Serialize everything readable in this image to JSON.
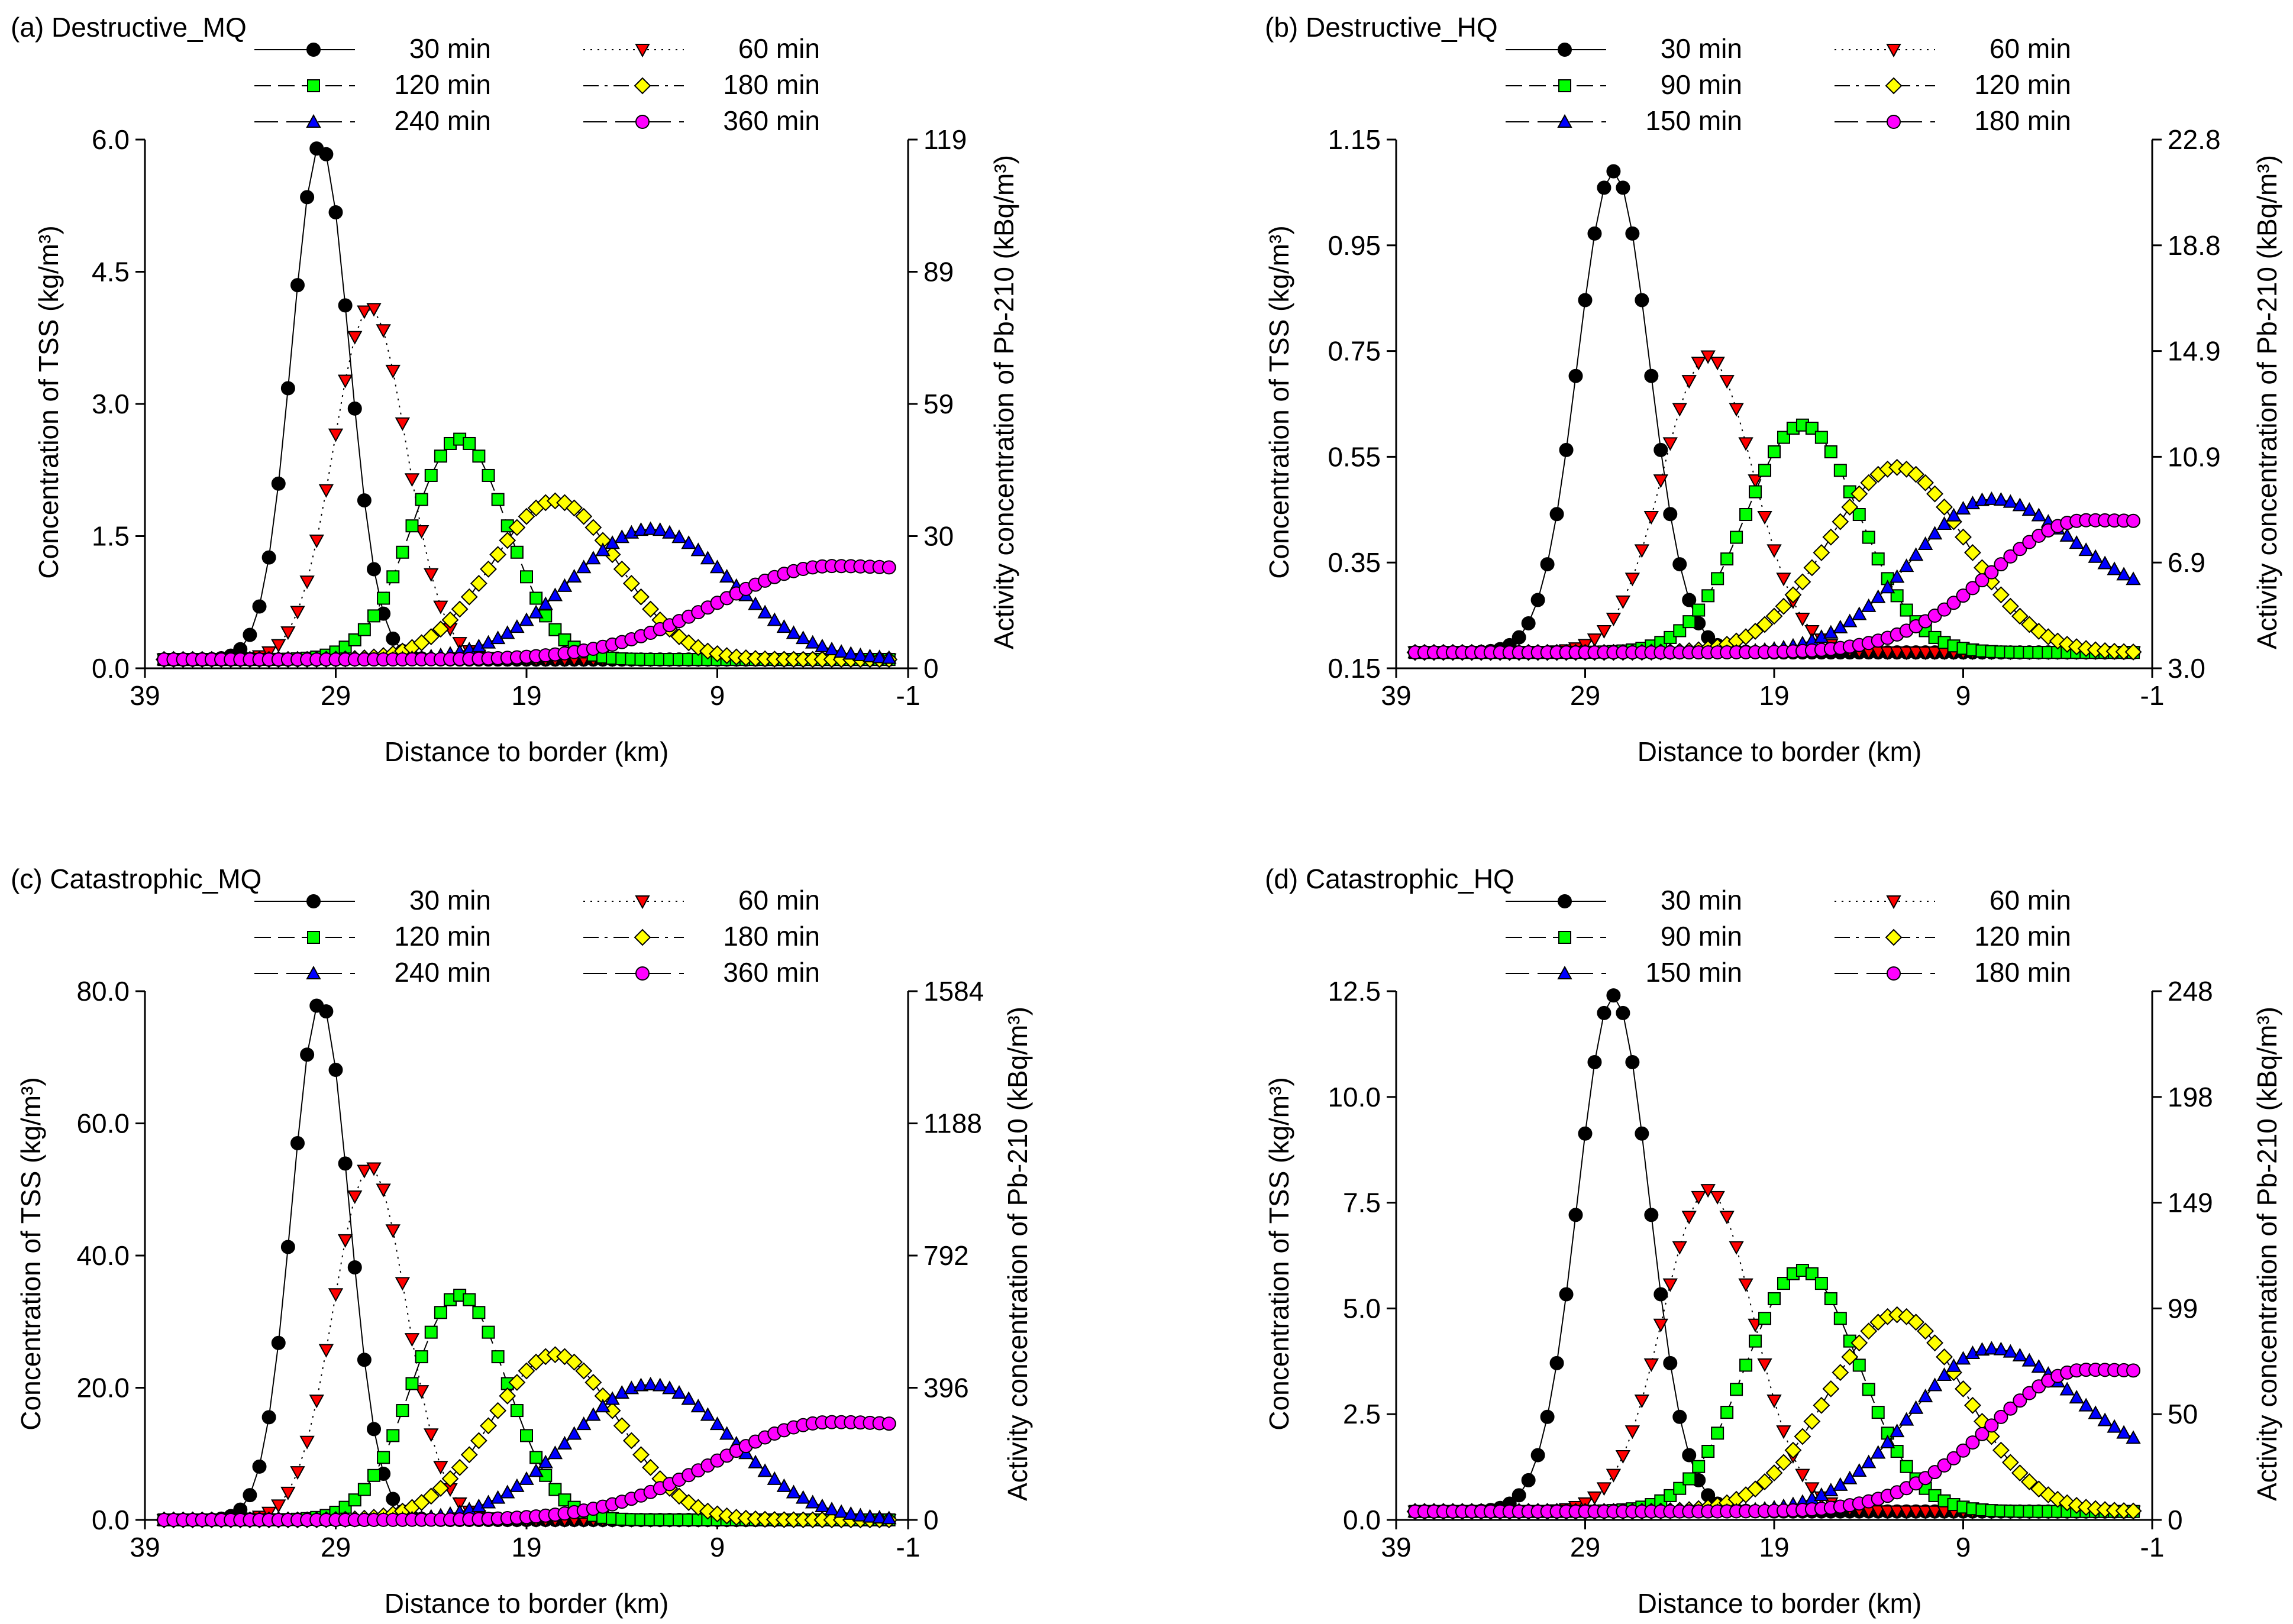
{
  "chart_data": [
    {
      "type": "line",
      "id": "a",
      "title": "(a) Destructive_MQ",
      "xlabel": "Distance to border (km)",
      "ylabel": "Concentration of TSS (kg/m³)",
      "y2label": "Activity concentration of Pb-210 (kBq/m³)",
      "xlim": [
        39,
        -1
      ],
      "xticks": [
        39,
        29,
        19,
        9,
        -1
      ],
      "ylim": [
        0,
        6.0
      ],
      "yticks": [
        "0.0",
        "1.5",
        "3.0",
        "4.5",
        "6.0"
      ],
      "y2ticks": [
        "0",
        "30",
        "59",
        "89",
        "119"
      ],
      "baseline": 0.1,
      "series": [
        {
          "name": "30 min",
          "label": "30 min",
          "color": "#000000",
          "marker": "circle",
          "dash": "solid",
          "peak_x": 29.8,
          "peak_y": 5.95,
          "sigma": 1.5,
          "tail": 0.1
        },
        {
          "name": "60 min",
          "label": "60 min",
          "color": "#ff0000",
          "marker": "triangle",
          "dash": "dotted",
          "peak_x": 27.2,
          "peak_y": 4.1,
          "sigma": 1.9,
          "tail": 0.1
        },
        {
          "name": "120 min",
          "label": "120 min",
          "color": "#00ff00",
          "marker": "square",
          "dash": "dashed",
          "peak_x": 22.5,
          "peak_y": 2.6,
          "sigma": 2.5,
          "tail": 0.1
        },
        {
          "name": "180 min",
          "label": "180 min",
          "color": "#ffff00",
          "marker": "diamond",
          "dash": "dashdot",
          "peak_x": 17.5,
          "peak_y": 1.9,
          "sigma": 3.3,
          "tail": 0.1
        },
        {
          "name": "240 min",
          "label": "240 min",
          "color": "#0000ff",
          "marker": "triangle",
          "dash": "longdash",
          "peak_x": 12.5,
          "peak_y": 1.58,
          "sigma": 4.2,
          "tail": 0.1
        },
        {
          "name": "360 min",
          "label": "360 min",
          "color": "#ff00ff",
          "marker": "circle",
          "dash": "longdash",
          "peak_x": 3.0,
          "peak_y": 1.16,
          "sigma": 6.0,
          "tail": 1.03
        }
      ]
    },
    {
      "type": "line",
      "id": "b",
      "title": "(b) Destructive_HQ",
      "xlabel": "Distance to border (km)",
      "ylabel": "Concentration of TSS (kg/m³)",
      "y2label": "Activity concentration of Pb-210 (kBq/m³)",
      "xlim": [
        39,
        -1
      ],
      "xticks": [
        39,
        29,
        19,
        9,
        -1
      ],
      "ylim": [
        0.15,
        1.15
      ],
      "yticks": [
        "0.15",
        "0.35",
        "0.55",
        "0.75",
        "0.95",
        "1.15"
      ],
      "y2ticks": [
        "3.0",
        "6.9",
        "10.9",
        "14.9",
        "18.8",
        "22.8"
      ],
      "baseline": 0.18,
      "series": [
        {
          "name": "30 min",
          "label": "30 min",
          "color": "#000000",
          "marker": "circle",
          "dash": "solid",
          "peak_x": 27.5,
          "peak_y": 1.09,
          "sigma": 1.9,
          "tail": 0.18
        },
        {
          "name": "60 min",
          "label": "60 min",
          "color": "#ff0000",
          "marker": "triangle",
          "dash": "dotted",
          "peak_x": 22.5,
          "peak_y": 0.74,
          "sigma": 2.4,
          "tail": 0.18
        },
        {
          "name": "90 min",
          "label": "90 min",
          "color": "#00ff00",
          "marker": "square",
          "dash": "dashed",
          "peak_x": 17.5,
          "peak_y": 0.61,
          "sigma": 3.0,
          "tail": 0.18
        },
        {
          "name": "120 min",
          "label": "120 min",
          "color": "#ffff00",
          "marker": "diamond",
          "dash": "dashdot",
          "peak_x": 12.5,
          "peak_y": 0.53,
          "sigma": 3.6,
          "tail": 0.18
        },
        {
          "name": "150 min",
          "label": "150 min",
          "color": "#0000ff",
          "marker": "triangle",
          "dash": "longdash",
          "peak_x": 7.5,
          "peak_y": 0.47,
          "sigma": 4.2,
          "tail": 0.28
        },
        {
          "name": "180 min",
          "label": "180 min",
          "color": "#ff00ff",
          "marker": "circle",
          "dash": "longdash",
          "peak_x": 2.5,
          "peak_y": 0.43,
          "sigma": 5.0,
          "tail": 0.42
        }
      ]
    },
    {
      "type": "line",
      "id": "c",
      "title": "(c) Catastrophic_MQ",
      "xlabel": "Distance to border (km)",
      "ylabel": "Concentration of TSS (kg/m³)",
      "y2label": "Activity concentration of Pb-210 (kBq/m³)",
      "xlim": [
        39,
        -1
      ],
      "xticks": [
        39,
        29,
        19,
        9,
        -1
      ],
      "ylim": [
        0,
        80.0
      ],
      "yticks": [
        "0.0",
        "20.0",
        "40.0",
        "60.0",
        "80.0"
      ],
      "y2ticks": [
        "0",
        "396",
        "792",
        "1188",
        "1584"
      ],
      "baseline": 0.0,
      "series": [
        {
          "name": "30 min",
          "label": "30 min",
          "color": "#000000",
          "marker": "circle",
          "dash": "solid",
          "peak_x": 29.8,
          "peak_y": 78.5,
          "sigma": 1.5,
          "tail": 0.0
        },
        {
          "name": "60 min",
          "label": "60 min",
          "color": "#ff0000",
          "marker": "triangle",
          "dash": "dotted",
          "peak_x": 27.2,
          "peak_y": 53.5,
          "sigma": 1.9,
          "tail": 0.0
        },
        {
          "name": "120 min",
          "label": "120 min",
          "color": "#00ff00",
          "marker": "square",
          "dash": "dashed",
          "peak_x": 22.5,
          "peak_y": 34.0,
          "sigma": 2.5,
          "tail": 0.0
        },
        {
          "name": "180 min",
          "label": "180 min",
          "color": "#ffff00",
          "marker": "diamond",
          "dash": "dashdot",
          "peak_x": 17.5,
          "peak_y": 25.0,
          "sigma": 3.3,
          "tail": 0.0
        },
        {
          "name": "240 min",
          "label": "240 min",
          "color": "#0000ff",
          "marker": "triangle",
          "dash": "longdash",
          "peak_x": 12.5,
          "peak_y": 20.5,
          "sigma": 4.2,
          "tail": 0.0
        },
        {
          "name": "360 min",
          "label": "360 min",
          "color": "#ff00ff",
          "marker": "circle",
          "dash": "longdash",
          "peak_x": 3.0,
          "peak_y": 14.8,
          "sigma": 6.0,
          "tail": 12.8
        }
      ]
    },
    {
      "type": "line",
      "id": "d",
      "title": "(d) Catastrophic_HQ",
      "xlabel": "Distance to border (km)",
      "ylabel": "Concentration of TSS (kg/m³)",
      "y2label": "Activity concentration of Pb-210 (kBq/m³)",
      "xlim": [
        39,
        -1
      ],
      "xticks": [
        39,
        29,
        19,
        9,
        -1
      ],
      "ylim": [
        0,
        12.5
      ],
      "yticks": [
        "0.0",
        "2.5",
        "5.0",
        "7.5",
        "10.0",
        "12.5"
      ],
      "y2ticks": [
        "0",
        "50",
        "99",
        "149",
        "198",
        "248"
      ],
      "baseline": 0.2,
      "series": [
        {
          "name": "30 min",
          "label": "30 min",
          "color": "#000000",
          "marker": "circle",
          "dash": "solid",
          "peak_x": 27.5,
          "peak_y": 12.4,
          "sigma": 1.9,
          "tail": 0.2
        },
        {
          "name": "60 min",
          "label": "60 min",
          "color": "#ff0000",
          "marker": "triangle",
          "dash": "dotted",
          "peak_x": 22.5,
          "peak_y": 7.8,
          "sigma": 2.4,
          "tail": 0.2
        },
        {
          "name": "90 min",
          "label": "90 min",
          "color": "#00ff00",
          "marker": "square",
          "dash": "dashed",
          "peak_x": 17.5,
          "peak_y": 5.9,
          "sigma": 3.0,
          "tail": 0.2
        },
        {
          "name": "120 min",
          "label": "120 min",
          "color": "#ffff00",
          "marker": "diamond",
          "dash": "dashdot",
          "peak_x": 12.5,
          "peak_y": 4.85,
          "sigma": 3.6,
          "tail": 0.2
        },
        {
          "name": "150 min",
          "label": "150 min",
          "color": "#0000ff",
          "marker": "triangle",
          "dash": "longdash",
          "peak_x": 7.5,
          "peak_y": 4.05,
          "sigma": 4.2,
          "tail": 1.4
        },
        {
          "name": "180 min",
          "label": "180 min",
          "color": "#ff00ff",
          "marker": "circle",
          "dash": "longdash",
          "peak_x": 2.5,
          "peak_y": 3.55,
          "sigma": 5.0,
          "tail": 3.4
        }
      ]
    }
  ]
}
